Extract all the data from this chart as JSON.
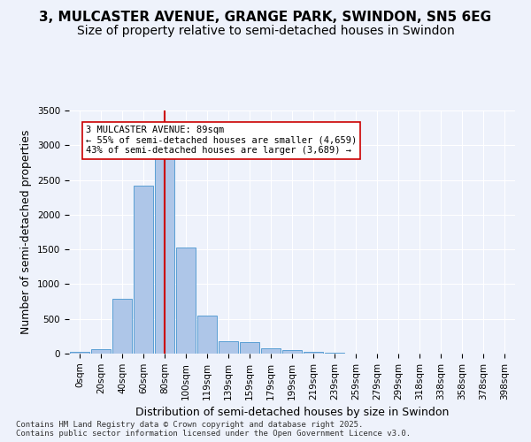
{
  "title_line1": "3, MULCASTER AVENUE, GRANGE PARK, SWINDON, SN5 6EG",
  "title_line2": "Size of property relative to semi-detached houses in Swindon",
  "xlabel": "Distribution of semi-detached houses by size in Swindon",
  "ylabel": "Number of semi-detached properties",
  "footnote": "Contains HM Land Registry data © Crown copyright and database right 2025.\nContains public sector information licensed under the Open Government Licence v3.0.",
  "bin_labels": [
    "0sqm",
    "20sqm",
    "40sqm",
    "60sqm",
    "80sqm",
    "100sqm",
    "119sqm",
    "139sqm",
    "159sqm",
    "179sqm",
    "199sqm",
    "219sqm",
    "239sqm",
    "259sqm",
    "279sqm",
    "299sqm",
    "318sqm",
    "338sqm",
    "358sqm",
    "378sqm",
    "398sqm"
  ],
  "bar_values": [
    30,
    60,
    790,
    2420,
    2890,
    1530,
    550,
    180,
    170,
    75,
    55,
    30,
    10,
    5,
    2,
    1,
    0,
    0,
    0,
    0,
    0
  ],
  "bar_color": "#aec6e8",
  "bar_edge_color": "#5a9fd4",
  "property_bin_index": 4,
  "vline_color": "#cc0000",
  "annotation_text": "3 MULCASTER AVENUE: 89sqm\n← 55% of semi-detached houses are smaller (4,659)\n43% of semi-detached houses are larger (3,689) →",
  "annotation_box_color": "#ffffff",
  "annotation_box_edge": "#cc0000",
  "ylim": [
    0,
    3500
  ],
  "yticks": [
    0,
    500,
    1000,
    1500,
    2000,
    2500,
    3000,
    3500
  ],
  "background_color": "#eef2fb",
  "grid_color": "#ffffff",
  "title_fontsize": 11,
  "subtitle_fontsize": 10,
  "axis_fontsize": 9,
  "tick_fontsize": 7.5
}
